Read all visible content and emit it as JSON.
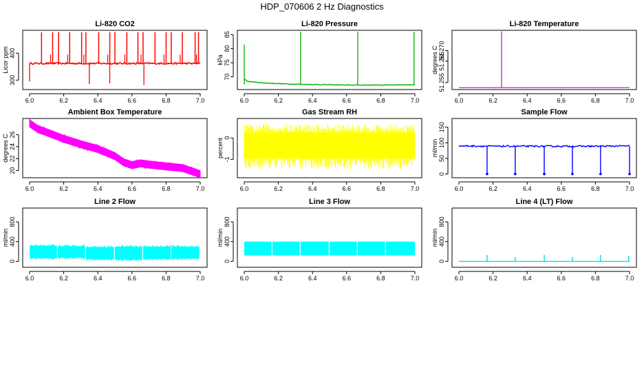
{
  "figure_title": "HDP_070606  2 Hz Diagnostics",
  "chart_data": [
    {
      "type": "line",
      "title": "Li-820 CO2",
      "ylabel": "Licor ppm",
      "color": "#ff0000",
      "xlim": [
        6.0,
        7.0
      ],
      "ylim": [
        265,
        485
      ],
      "x_ticks": [
        "6.0",
        "6.2",
        "6.4",
        "6.6",
        "6.8",
        "7.0"
      ],
      "y_ticks": [
        300,
        400
      ],
      "series": [
        {
          "name": "baseline",
          "x": [
            6.0,
            7.0
          ],
          "values": [
            362,
            362
          ]
        },
        {
          "name": "spikes",
          "x": [
            6.07,
            6.135,
            6.17,
            6.235,
            6.305,
            6.33,
            6.405,
            6.47,
            6.5,
            6.57,
            6.635,
            6.665,
            6.735,
            6.8,
            6.83,
            6.895,
            6.97,
            6.99
          ],
          "values": [
            478,
            478,
            478,
            478,
            478,
            478,
            478,
            478,
            478,
            478,
            478,
            478,
            478,
            478,
            478,
            478,
            478,
            478
          ]
        },
        {
          "name": "dips",
          "x": [
            6.0,
            6.35,
            6.47,
            6.67
          ],
          "values": [
            295,
            285,
            288,
            282
          ]
        }
      ]
    },
    {
      "type": "line",
      "title": "Li-820 Pressure",
      "ylabel": "kPa",
      "color": "#00b000",
      "xlim": [
        6.0,
        7.0
      ],
      "ylim": [
        65.5,
        86.5
      ],
      "x_ticks": [
        "6.0",
        "6.2",
        "6.4",
        "6.6",
        "6.8",
        "7.0"
      ],
      "y_ticks": [
        70,
        75,
        80,
        85
      ],
      "series": [
        {
          "name": "pressure",
          "x": [
            6.0,
            6.02,
            6.1,
            6.2,
            6.3,
            6.4,
            6.5,
            6.6,
            6.7,
            6.8,
            6.9,
            7.0
          ],
          "values": [
            69.3,
            68.4,
            67.9,
            67.6,
            67.4,
            67.3,
            67.2,
            67.1,
            67.1,
            67.1,
            67.2,
            67.2
          ]
        },
        {
          "name": "spikes",
          "x": [
            6.0,
            6.33,
            6.665,
            6.995
          ],
          "values": [
            81.5,
            86.0,
            86.0,
            86.0
          ]
        }
      ]
    },
    {
      "type": "line",
      "title": "Li-820 Temperature",
      "ylabel": "degrees C",
      "color": "#cc00cc",
      "xlim": [
        6.0,
        7.0
      ],
      "ylim": [
        51.2517,
        51.2795
      ],
      "x_ticks": [
        "6.0",
        "6.2",
        "6.4",
        "6.6",
        "6.8",
        "7.0"
      ],
      "y_ticks": [
        "51.255",
        "51.265",
        "51.270"
      ],
      "series": [
        {
          "name": "temperature",
          "x": [
            6.0,
            7.0
          ],
          "values": [
            51.2526,
            51.2526
          ]
        },
        {
          "name": "spike",
          "x": [
            6.25
          ],
          "values": [
            51.279
          ]
        }
      ]
    },
    {
      "type": "area",
      "title": "Ambient Box Temperature",
      "ylabel": "degrees C",
      "color": "#ff00ff",
      "xlim": [
        6.0,
        7.0
      ],
      "ylim": [
        18.8,
        28.7
      ],
      "x_ticks": [
        "6.0",
        "6.2",
        "6.4",
        "6.6",
        "6.8",
        "7.0"
      ],
      "y_ticks": [
        20,
        22,
        24,
        26
      ],
      "series": [
        {
          "name": "temperature",
          "x": [
            6.0,
            6.05,
            6.1,
            6.2,
            6.3,
            6.4,
            6.5,
            6.55,
            6.6,
            6.65,
            6.7,
            6.8,
            6.9,
            6.95,
            7.0
          ],
          "values": [
            27.9,
            26.9,
            26.4,
            25.3,
            24.4,
            23.6,
            22.4,
            21.4,
            20.9,
            21.2,
            21.0,
            20.7,
            20.4,
            19.9,
            19.4
          ]
        }
      ]
    },
    {
      "type": "area",
      "title": "Gas Stream RH",
      "ylabel": "percent",
      "color": "#ffff00",
      "xlim": [
        6.0,
        7.0
      ],
      "ylim": [
        -1.85,
        0.9
      ],
      "x_ticks": [
        "6.0",
        "6.2",
        "6.4",
        "6.6",
        "6.8",
        "7.0"
      ],
      "y_ticks": [
        -1,
        0
      ],
      "series": [
        {
          "name": "rh_range",
          "x": [
            6.0,
            7.0
          ],
          "upper": [
            0.65,
            0.55
          ],
          "lower": [
            -1.45,
            -1.45
          ],
          "core_upper": 0.25,
          "core_lower": -0.95
        }
      ]
    },
    {
      "type": "line",
      "title": "Sample Flow",
      "ylabel": "ml/min",
      "color": "#0000ff",
      "xlim": [
        6.0,
        7.0
      ],
      "ylim": [
        -12,
        178
      ],
      "x_ticks": [
        "6.0",
        "6.2",
        "6.4",
        "6.6",
        "6.8",
        "7.0"
      ],
      "y_ticks": [
        0,
        50,
        100,
        150
      ],
      "series": [
        {
          "name": "flow",
          "x": [
            6.0,
            6.2,
            6.4,
            6.6,
            6.8,
            7.0
          ],
          "values": [
            90,
            89,
            89,
            89,
            89,
            90
          ]
        },
        {
          "name": "dips",
          "x": [
            6.165,
            6.33,
            6.5,
            6.665,
            6.83,
            7.0
          ],
          "values": [
            0,
            0,
            0,
            0,
            0,
            0
          ]
        }
      ]
    },
    {
      "type": "area",
      "title": "Line 2 Flow",
      "ylabel": "ml/min",
      "color": "#00ffff",
      "xlim": [
        6.0,
        7.0
      ],
      "ylim": [
        -120,
        1080
      ],
      "x_ticks": [
        "6.0",
        "6.2",
        "6.4",
        "6.6",
        "6.8",
        "7.0"
      ],
      "y_ticks": [
        0,
        400,
        800
      ],
      "series": [
        {
          "name": "segments",
          "starts": [
            6.0,
            6.165,
            6.33,
            6.5,
            6.665,
            6.83
          ],
          "ends": [
            6.16,
            6.325,
            6.495,
            6.66,
            6.825,
            6.995
          ],
          "upper": [
            320,
            310,
            290,
            300,
            300,
            300
          ],
          "lower": [
            60,
            70,
            40,
            30,
            50,
            55
          ]
        }
      ]
    },
    {
      "type": "area",
      "title": "Line 3 Flow",
      "ylabel": "ml/min",
      "color": "#00ffff",
      "xlim": [
        6.0,
        7.0
      ],
      "ylim": [
        -120,
        1080
      ],
      "x_ticks": [
        "6.0",
        "6.2",
        "6.4",
        "6.6",
        "6.8",
        "7.0"
      ],
      "y_ticks": [
        0,
        400,
        800
      ],
      "series": [
        {
          "name": "segments",
          "starts": [
            6.0,
            6.165,
            6.33,
            6.5,
            6.665,
            6.83
          ],
          "ends": [
            6.16,
            6.325,
            6.495,
            6.66,
            6.825,
            7.0
          ],
          "upper": [
            400,
            400,
            400,
            400,
            400,
            400
          ],
          "lower": [
            120,
            120,
            120,
            120,
            120,
            120
          ]
        }
      ]
    },
    {
      "type": "line",
      "title": "Line 4 (LT) Flow",
      "ylabel": "ml/min",
      "color": "#00dddd",
      "xlim": [
        6.0,
        7.0
      ],
      "ylim": [
        -120,
        1080
      ],
      "x_ticks": [
        "6.0",
        "6.2",
        "6.4",
        "6.6",
        "6.8",
        "7.0"
      ],
      "y_ticks": [
        0,
        400,
        800
      ],
      "series": [
        {
          "name": "flow",
          "x": [
            6.0,
            7.0
          ],
          "values": [
            0,
            0
          ]
        },
        {
          "name": "spikes",
          "x": [
            6.165,
            6.33,
            6.5,
            6.665,
            6.83,
            6.995
          ],
          "values": [
            130,
            90,
            130,
            90,
            130,
            110
          ]
        }
      ]
    }
  ]
}
